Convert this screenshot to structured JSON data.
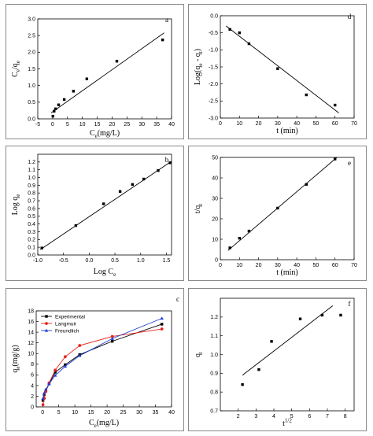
{
  "chart_data": [
    {
      "id": "a",
      "type": "scatter",
      "panel_label": "a",
      "xlabel_main": "C",
      "xlabel_sub": "e",
      "xlabel_suffix": "(mg/L)",
      "ylabel_main": "C",
      "ylabel_sub1": "e",
      "ylabel_mid": "/q",
      "ylabel_sub2": "e",
      "xlim": [
        -5,
        40
      ],
      "ylim": [
        0,
        3
      ],
      "xticks": [
        -5,
        0,
        5,
        10,
        15,
        20,
        25,
        30,
        35,
        40
      ],
      "yticks": [
        0,
        0.5,
        1,
        1.5,
        2,
        2.5,
        3
      ],
      "xtick_labels": [
        "-5",
        "0",
        "5",
        "10",
        "15",
        "20",
        "25",
        "30",
        "35",
        "40"
      ],
      "ytick_labels": [
        "0.0",
        "0.5",
        "1.0",
        "1.5",
        "2.0",
        "2.5",
        "3.0"
      ],
      "points": [
        [
          0.1,
          0.08
        ],
        [
          0.5,
          0.23
        ],
        [
          1.0,
          0.3
        ],
        [
          2.0,
          0.42
        ],
        [
          3.9,
          0.58
        ],
        [
          7.0,
          0.83
        ],
        [
          11.5,
          1.2
        ],
        [
          21.6,
          1.73
        ],
        [
          37.0,
          2.37
        ]
      ],
      "fit_line": [
        [
          -0.5,
          0.18
        ],
        [
          37.5,
          2.58
        ]
      ]
    },
    {
      "id": "b",
      "type": "scatter",
      "panel_label": "b",
      "xlabel_main": "Log C",
      "xlabel_sub": "e",
      "ylabel_main": "Log q",
      "ylabel_sub1": "e",
      "xlim": [
        -1.0,
        1.6
      ],
      "ylim": [
        0.0,
        1.3
      ],
      "xticks": [
        -1.0,
        -0.5,
        0.0,
        0.5,
        1.0,
        1.5
      ],
      "yticks": [
        0.0,
        0.1,
        0.2,
        0.3,
        0.4,
        0.5,
        0.6,
        0.7,
        0.8,
        0.9,
        1.0,
        1.1,
        1.2
      ],
      "xtick_labels": [
        "-1.0",
        "-0.5",
        "0.0",
        "0.5",
        "1.0",
        "1.5"
      ],
      "ytick_labels": [
        "0.0",
        "0.1",
        "0.2",
        "0.3",
        "0.4",
        "0.5",
        "0.6",
        "0.7",
        "0.8",
        "0.9",
        "1.0",
        "1.1",
        "1.2"
      ],
      "points": [
        [
          -0.92,
          0.09
        ],
        [
          -0.26,
          0.38
        ],
        [
          0.28,
          0.66
        ],
        [
          0.6,
          0.82
        ],
        [
          0.84,
          0.91
        ],
        [
          1.06,
          0.98
        ],
        [
          1.34,
          1.09
        ],
        [
          1.57,
          1.19
        ]
      ],
      "fit_line": [
        [
          -0.95,
          0.07
        ],
        [
          1.6,
          1.21
        ]
      ]
    },
    {
      "id": "c",
      "type": "line",
      "panel_label": "c",
      "xlabel_main": "C",
      "xlabel_sub": "e",
      "xlabel_suffix": "(mg/L)",
      "ylabel_main": "q",
      "ylabel_sub1": "e",
      "ylabel_suffix": "(mg/g)",
      "xlim": [
        -2,
        40
      ],
      "ylim": [
        0,
        18
      ],
      "xticks": [
        0,
        5,
        10,
        15,
        20,
        25,
        30,
        35,
        40
      ],
      "yticks": [
        0,
        2,
        4,
        6,
        8,
        10,
        12,
        14,
        16,
        18
      ],
      "xtick_labels": [
        "0",
        "5",
        "10",
        "15",
        "20",
        "25",
        "30",
        "35",
        "40"
      ],
      "ytick_labels": [
        "0",
        "2",
        "4",
        "6",
        "8",
        "10",
        "12",
        "14",
        "16",
        "18"
      ],
      "legend_position": "top-left",
      "series": [
        {
          "name": "Experimental",
          "color": "#000000",
          "marker": "square",
          "x": [
            0.1,
            0.5,
            1.0,
            2.0,
            3.9,
            7.0,
            11.5,
            21.6,
            37.0
          ],
          "y": [
            1.2,
            2.3,
            3.0,
            4.3,
            6.5,
            7.9,
            9.8,
            12.3,
            15.5
          ]
        },
        {
          "name": "Langmuir",
          "color": "#e8231e",
          "marker": "circle",
          "x": [
            0.1,
            0.5,
            1.0,
            2.0,
            3.9,
            7.0,
            11.5,
            21.6,
            37.0
          ],
          "y": [
            0.4,
            1.6,
            2.9,
            4.5,
            6.9,
            9.4,
            11.5,
            13.2,
            14.6
          ]
        },
        {
          "name": "Freundlich",
          "color": "#1f3fd6",
          "marker": "triangle",
          "x": [
            0.1,
            0.5,
            1.0,
            2.0,
            3.9,
            7.0,
            11.5,
            21.6,
            37.0
          ],
          "y": [
            1.6,
            2.6,
            3.3,
            4.3,
            5.9,
            7.6,
            9.6,
            12.8,
            16.6
          ]
        }
      ]
    },
    {
      "id": "d",
      "type": "scatter",
      "panel_label": "d",
      "xlabel_main": "t (min)",
      "ylabel_main": "Log(q",
      "ylabel_sub1": "e",
      "ylabel_mid": " - q",
      "ylabel_sub2": "t",
      "ylabel_suffix": ")",
      "xlim": [
        0,
        70
      ],
      "ylim": [
        -3.0,
        0.0
      ],
      "xticks": [
        0,
        10,
        20,
        30,
        40,
        50,
        60,
        70
      ],
      "yticks": [
        -3.0,
        -2.5,
        -2.0,
        -1.5,
        -1.0,
        -0.5,
        0.0
      ],
      "xtick_labels": [
        "0",
        "10",
        "20",
        "30",
        "40",
        "50",
        "60",
        "70"
      ],
      "ytick_labels": [
        "-3.0",
        "-2.5",
        "-2.0",
        "-1.5",
        "-1.0",
        "-0.5",
        "0.0"
      ],
      "points": [
        [
          5,
          -0.4
        ],
        [
          10,
          -0.5
        ],
        [
          15,
          -0.82
        ],
        [
          30,
          -1.55
        ],
        [
          45,
          -2.32
        ],
        [
          60,
          -2.62
        ]
      ],
      "fit_line": [
        [
          3,
          -0.3
        ],
        [
          62,
          -2.85
        ]
      ]
    },
    {
      "id": "e",
      "type": "scatter",
      "panel_label": "e",
      "xlabel_main": "t (min)",
      "ylabel_main": "t/q",
      "ylabel_sub1": "t",
      "xlim": [
        0,
        70
      ],
      "ylim": [
        0,
        50
      ],
      "xticks": [
        0,
        10,
        20,
        30,
        40,
        50,
        60,
        70
      ],
      "yticks": [
        0,
        10,
        20,
        30,
        40,
        50
      ],
      "xtick_labels": [
        "0",
        "10",
        "20",
        "30",
        "40",
        "50",
        "60",
        "70"
      ],
      "ytick_labels": [
        "0",
        "10",
        "20",
        "30",
        "40",
        "50"
      ],
      "points": [
        [
          5,
          5.8
        ],
        [
          10,
          10.5
        ],
        [
          15,
          14.0
        ],
        [
          30,
          25.2
        ],
        [
          45,
          36.8
        ],
        [
          60,
          49.2
        ]
      ],
      "fit_line": [
        [
          4,
          4.5
        ],
        [
          61,
          50.0
        ]
      ]
    },
    {
      "id": "f",
      "type": "scatter",
      "panel_label": "f",
      "xlabel_main": "t",
      "xlabel_sup": "1/2",
      "ylabel_main": "q",
      "ylabel_sub1": "t",
      "xlim": [
        1,
        8.5
      ],
      "ylim": [
        0.7,
        1.3
      ],
      "xticks": [
        2,
        3,
        4,
        5,
        6,
        7,
        8
      ],
      "yticks": [
        0.7,
        0.8,
        0.9,
        1.0,
        1.1,
        1.2
      ],
      "xtick_labels": [
        "2",
        "3",
        "4",
        "5",
        "6",
        "7",
        "8"
      ],
      "ytick_labels": [
        "0.7",
        "0.8",
        "0.9",
        "1.0",
        "1.1",
        "1.2"
      ],
      "points": [
        [
          2.24,
          0.84
        ],
        [
          3.16,
          0.92
        ],
        [
          3.87,
          1.07
        ],
        [
          5.48,
          1.19
        ],
        [
          6.71,
          1.21
        ],
        [
          7.75,
          1.21
        ]
      ],
      "fit_line": [
        [
          2.24,
          0.89
        ],
        [
          7.3,
          1.26
        ]
      ]
    }
  ]
}
